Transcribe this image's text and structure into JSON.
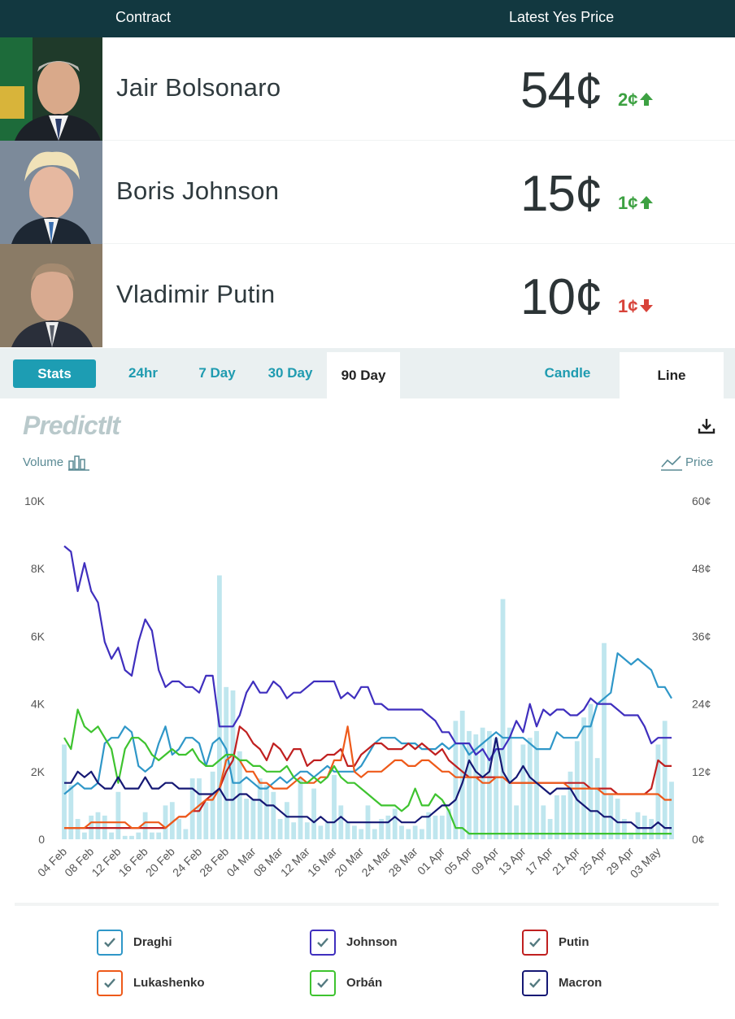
{
  "header": {
    "contract_label": "Contract",
    "price_label": "Latest Yes Price"
  },
  "contracts": [
    {
      "name": "Jair Bolsonaro",
      "price": "54¢",
      "change": "2¢",
      "direction": "up"
    },
    {
      "name": "Boris Johnson",
      "price": "15¢",
      "change": "1¢",
      "direction": "up"
    },
    {
      "name": "Vladimir Putin",
      "price": "10¢",
      "change": "1¢",
      "direction": "down"
    }
  ],
  "tabs": {
    "stats": "Stats",
    "h24": "24hr",
    "d7": "7 Day",
    "d30": "30 Day",
    "d90": "90 Day",
    "candle": "Candle",
    "line": "Line"
  },
  "chart_header": {
    "logo": "PredictIt",
    "volume_label": "Volume",
    "price_label": "Price"
  },
  "colors": {
    "header_bg": "#123840",
    "accent": "#1d9db3",
    "up": "#3da142",
    "down": "#d8433a"
  },
  "chart_data": {
    "type": "line",
    "x": [
      "04 Feb",
      "05 Feb",
      "06 Feb",
      "07 Feb",
      "08 Feb",
      "09 Feb",
      "10 Feb",
      "11 Feb",
      "12 Feb",
      "13 Feb",
      "14 Feb",
      "15 Feb",
      "16 Feb",
      "17 Feb",
      "18 Feb",
      "19 Feb",
      "20 Feb",
      "21 Feb",
      "22 Feb",
      "23 Feb",
      "24 Feb",
      "25 Feb",
      "26 Feb",
      "27 Feb",
      "28 Feb",
      "01 Mar",
      "02 Mar",
      "03 Mar",
      "04 Mar",
      "05 Mar",
      "06 Mar",
      "07 Mar",
      "08 Mar",
      "09 Mar",
      "10 Mar",
      "11 Mar",
      "12 Mar",
      "13 Mar",
      "14 Mar",
      "15 Mar",
      "16 Mar",
      "17 Mar",
      "18 Mar",
      "19 Mar",
      "20 Mar",
      "21 Mar",
      "22 Mar",
      "23 Mar",
      "24 Mar",
      "25 Mar",
      "26 Mar",
      "27 Mar",
      "28 Mar",
      "29 Mar",
      "30 Mar",
      "31 Mar",
      "01 Apr",
      "02 Apr",
      "03 Apr",
      "04 Apr",
      "05 Apr",
      "06 Apr",
      "07 Apr",
      "08 Apr",
      "09 Apr",
      "10 Apr",
      "11 Apr",
      "12 Apr",
      "13 Apr",
      "14 Apr",
      "15 Apr",
      "16 Apr",
      "17 Apr",
      "18 Apr",
      "19 Apr",
      "20 Apr",
      "21 Apr",
      "22 Apr",
      "23 Apr",
      "24 Apr",
      "25 Apr",
      "26 Apr",
      "27 Apr",
      "28 Apr",
      "29 Apr",
      "30 Apr",
      "01 May",
      "02 May",
      "03 May",
      "04 May",
      "05 May"
    ],
    "x_ticks": [
      "04 Feb",
      "08 Feb",
      "12 Feb",
      "16 Feb",
      "20 Feb",
      "24 Feb",
      "28 Feb",
      "04 Mar",
      "08 Mar",
      "12 Mar",
      "16 Mar",
      "20 Mar",
      "24 Mar",
      "28 Mar",
      "01 Apr",
      "05 Apr",
      "09 Apr",
      "13 Apr",
      "17 Apr",
      "21 Apr",
      "25 Apr",
      "29 Apr",
      "03 May"
    ],
    "y_left": {
      "label": "Volume",
      "ticks": [
        "0",
        "2K",
        "4K",
        "6K",
        "8K",
        "10K"
      ],
      "range": [
        0,
        10000
      ]
    },
    "y_right": {
      "label": "Price",
      "ticks": [
        "0¢",
        "12¢",
        "24¢",
        "36¢",
        "48¢",
        "60¢"
      ],
      "range": [
        0,
        60
      ]
    },
    "volume": [
      2800,
      1600,
      600,
      200,
      700,
      800,
      700,
      200,
      1400,
      100,
      100,
      200,
      800,
      200,
      200,
      1000,
      1100,
      600,
      300,
      1800,
      1800,
      1100,
      2000,
      7800,
      4500,
      4400,
      2600,
      1200,
      1200,
      1800,
      1600,
      1400,
      600,
      1100,
      500,
      1800,
      500,
      1500,
      400,
      500,
      1900,
      1000,
      500,
      400,
      300,
      1000,
      300,
      600,
      700,
      900,
      400,
      300,
      400,
      300,
      800,
      700,
      700,
      900,
      3500,
      3800,
      3200,
      3100,
      3300,
      3200,
      3000,
      7100,
      3300,
      1000,
      2800,
      3000,
      3200,
      1000,
      600,
      1300,
      1300,
      2000,
      2900,
      3600,
      4000,
      2400,
      5800,
      1300,
      1200,
      600,
      200,
      800,
      700,
      600,
      2800,
      3500,
      1700
    ],
    "series": [
      {
        "name": "Draghi",
        "color": "#2f97c8",
        "values": [
          8,
          9,
          10,
          9,
          9,
          10,
          17,
          18,
          18,
          20,
          19,
          13,
          12,
          13,
          17,
          20,
          15,
          16,
          18,
          18,
          17,
          13,
          17,
          18,
          16,
          10,
          10,
          11,
          10,
          9,
          9,
          10,
          11,
          10,
          11,
          12,
          12,
          11,
          12,
          13,
          12,
          12,
          12,
          12,
          13,
          15,
          17,
          18,
          18,
          18,
          17,
          17,
          17,
          16,
          16,
          16,
          17,
          16,
          17,
          17,
          15,
          16,
          17,
          18,
          19,
          18,
          18,
          18,
          18,
          17,
          16,
          16,
          16,
          19,
          18,
          18,
          18,
          20,
          20,
          24,
          25,
          26,
          33,
          32,
          31,
          32,
          31,
          30,
          27,
          27,
          25
        ]
      },
      {
        "name": "Johnson",
        "color": "#3f2fbe",
        "values": [
          52,
          51,
          44,
          49,
          44,
          42,
          35,
          32,
          34,
          30,
          29,
          35,
          39,
          37,
          30,
          27,
          28,
          28,
          27,
          27,
          26,
          29,
          29,
          20,
          20,
          20,
          22,
          26,
          28,
          26,
          26,
          28,
          27,
          25,
          26,
          26,
          27,
          28,
          28,
          28,
          28,
          25,
          26,
          25,
          27,
          27,
          24,
          24,
          23,
          23,
          23,
          23,
          23,
          23,
          22,
          21,
          19,
          19,
          17,
          17,
          17,
          15,
          16,
          14,
          16,
          16,
          18,
          21,
          19,
          24,
          20,
          23,
          22,
          23,
          23,
          22,
          22,
          23,
          25,
          24,
          24,
          24,
          23,
          22,
          22,
          22,
          20,
          17,
          18,
          18,
          18
        ]
      },
      {
        "name": "Putin",
        "color": "#c02020",
        "values": [
          2,
          2,
          2,
          2,
          2,
          2,
          2,
          2,
          2,
          2,
          2,
          2,
          2,
          2,
          2,
          2,
          3,
          4,
          4,
          5,
          5,
          7,
          8,
          9,
          12,
          14,
          20,
          19,
          17,
          16,
          14,
          17,
          16,
          14,
          16,
          16,
          13,
          14,
          14,
          15,
          15,
          16,
          13,
          13,
          15,
          16,
          17,
          17,
          16,
          16,
          16,
          17,
          16,
          17,
          16,
          15,
          16,
          14,
          13,
          12,
          11,
          11,
          11,
          11,
          11,
          11,
          10,
          10,
          10,
          10,
          10,
          10,
          10,
          10,
          10,
          10,
          10,
          10,
          9,
          9,
          9,
          9,
          8,
          8,
          8,
          8,
          8,
          9,
          14,
          13,
          13
        ]
      },
      {
        "name": "Lukashenko",
        "color": "#ee5a1a",
        "values": [
          2,
          2,
          2,
          2,
          3,
          3,
          3,
          3,
          3,
          3,
          2,
          2,
          3,
          3,
          3,
          2,
          3,
          4,
          4,
          5,
          6,
          7,
          7,
          9,
          14,
          15,
          14,
          12,
          12,
          10,
          10,
          9,
          9,
          9,
          10,
          11,
          10,
          10,
          11,
          11,
          14,
          14,
          20,
          12,
          11,
          12,
          12,
          12,
          13,
          14,
          14,
          13,
          13,
          14,
          14,
          13,
          12,
          12,
          11,
          11,
          11,
          11,
          10,
          10,
          11,
          11,
          10,
          10,
          10,
          10,
          10,
          10,
          10,
          10,
          10,
          9,
          9,
          9,
          9,
          9,
          8,
          8,
          8,
          8,
          8,
          8,
          8,
          8,
          8,
          7,
          7
        ]
      },
      {
        "name": "Orbán",
        "color": "#3ec32f",
        "values": [
          18,
          16,
          23,
          20,
          19,
          20,
          18,
          16,
          10,
          16,
          18,
          18,
          17,
          15,
          14,
          15,
          16,
          15,
          15,
          16,
          14,
          13,
          13,
          14,
          15,
          15,
          14,
          14,
          13,
          13,
          12,
          12,
          12,
          13,
          11,
          10,
          10,
          11,
          10,
          11,
          13,
          11,
          10,
          10,
          9,
          8,
          7,
          6,
          6,
          6,
          5,
          6,
          9,
          6,
          6,
          8,
          7,
          5,
          2,
          2,
          1,
          1,
          1,
          1,
          1,
          1,
          1,
          1,
          1,
          1,
          1,
          1,
          1,
          1,
          1,
          1,
          1,
          1,
          1,
          1,
          1,
          1,
          1,
          1,
          1,
          1,
          1,
          1,
          1,
          1,
          1
        ]
      },
      {
        "name": "Macron",
        "color": "#151874",
        "values": [
          10,
          10,
          12,
          11,
          12,
          10,
          9,
          9,
          11,
          9,
          9,
          9,
          11,
          9,
          9,
          10,
          10,
          9,
          9,
          9,
          8,
          8,
          8,
          9,
          7,
          7,
          8,
          8,
          7,
          7,
          6,
          6,
          5,
          4,
          4,
          4,
          4,
          3,
          4,
          3,
          3,
          4,
          3,
          3,
          3,
          3,
          3,
          3,
          3,
          4,
          3,
          3,
          3,
          4,
          4,
          5,
          6,
          6,
          7,
          10,
          14,
          12,
          11,
          12,
          18,
          12,
          10,
          11,
          13,
          11,
          10,
          9,
          8,
          9,
          9,
          9,
          7,
          6,
          5,
          5,
          4,
          4,
          3,
          3,
          3,
          2,
          2,
          2,
          3,
          2,
          2
        ]
      }
    ]
  },
  "legend": [
    "Draghi",
    "Johnson",
    "Putin",
    "Lukashenko",
    "Orbán",
    "Macron"
  ]
}
